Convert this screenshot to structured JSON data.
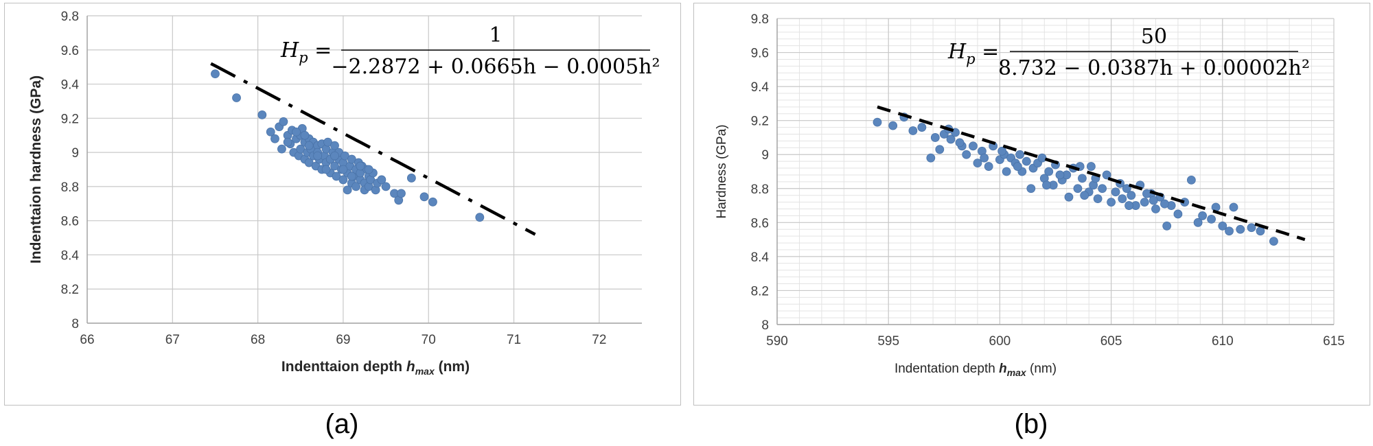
{
  "captions": {
    "a": "(a)",
    "b": "(b)"
  },
  "chart_data": [
    {
      "type": "scatter",
      "panel": "(a)",
      "xlabel": "Indenttaion depth",
      "xlabel_sym": "h",
      "xlabel_sub": "max",
      "xlabel_unit": "(nm)",
      "ylabel": "Indenttaion hardness (GPa)",
      "xlim": [
        66,
        72.5
      ],
      "ylim": [
        8,
        9.8
      ],
      "xticks": [
        66,
        67,
        68,
        69,
        70,
        71,
        72
      ],
      "yticks": [
        8,
        8.2,
        8.4,
        8.6,
        8.8,
        9,
        9.2,
        9.4,
        9.6,
        9.8
      ],
      "ytick_labels": [
        "8",
        "8.2",
        "8.4",
        "8.6",
        "8.8",
        "9",
        "9.2",
        "9.4",
        "9.6",
        "9.8"
      ],
      "grid": "major-vertical-and-horizontal",
      "equation": {
        "lhs": "H",
        "lhs_sub": "p",
        "numerator": "1",
        "denominator": "−2.2872 + 0.0665h − 0.0005h²"
      },
      "fit": {
        "coeffs": [
          -2.2872,
          0.0665,
          -0.0005
        ],
        "numerator": 1,
        "x_range": [
          67.45,
          71.25
        ],
        "y_range": [
          9.52,
          8.52
        ],
        "style": "dash-dot"
      },
      "points": [
        [
          67.5,
          9.46
        ],
        [
          67.75,
          9.32
        ],
        [
          68.05,
          9.22
        ],
        [
          68.15,
          9.12
        ],
        [
          68.2,
          9.08
        ],
        [
          68.25,
          9.15
        ],
        [
          68.28,
          9.02
        ],
        [
          68.3,
          9.18
        ],
        [
          68.35,
          9.1
        ],
        [
          68.38,
          9.05
        ],
        [
          68.4,
          9.13
        ],
        [
          68.42,
          9.0
        ],
        [
          68.45,
          9.08
        ],
        [
          68.48,
          8.98
        ],
        [
          68.5,
          9.1
        ],
        [
          68.5,
          9.02
        ],
        [
          68.52,
          9.14
        ],
        [
          68.55,
          8.96
        ],
        [
          68.55,
          9.06
        ],
        [
          68.58,
          9.0
        ],
        [
          68.6,
          9.08
        ],
        [
          68.6,
          8.94
        ],
        [
          68.62,
          9.02
        ],
        [
          68.65,
          8.98
        ],
        [
          68.65,
          9.06
        ],
        [
          68.68,
          8.92
        ],
        [
          68.7,
          9.04
        ],
        [
          68.7,
          9.0
        ],
        [
          68.72,
          8.96
        ],
        [
          68.75,
          9.05
        ],
        [
          68.75,
          8.9
        ],
        [
          68.78,
          8.98
        ],
        [
          68.8,
          9.02
        ],
        [
          68.8,
          8.94
        ],
        [
          68.82,
          9.06
        ],
        [
          68.85,
          8.88
        ],
        [
          68.85,
          8.96
        ],
        [
          68.88,
          9.0
        ],
        [
          68.9,
          8.92
        ],
        [
          68.9,
          9.04
        ],
        [
          68.92,
          8.86
        ],
        [
          68.95,
          8.96
        ],
        [
          68.95,
          9.0
        ],
        [
          68.98,
          8.9
        ],
        [
          69.0,
          8.94
        ],
        [
          69.0,
          8.84
        ],
        [
          69.02,
          8.98
        ],
        [
          69.05,
          8.88
        ],
        [
          69.05,
          8.78
        ],
        [
          69.08,
          8.92
        ],
        [
          69.1,
          8.82
        ],
        [
          69.1,
          8.96
        ],
        [
          69.12,
          8.86
        ],
        [
          69.15,
          8.9
        ],
        [
          69.15,
          8.8
        ],
        [
          69.18,
          8.94
        ],
        [
          69.2,
          8.84
        ],
        [
          69.2,
          8.88
        ],
        [
          69.22,
          8.92
        ],
        [
          69.25,
          8.82
        ],
        [
          69.25,
          8.78
        ],
        [
          69.28,
          8.9
        ],
        [
          69.3,
          8.86
        ],
        [
          69.3,
          8.8
        ],
        [
          69.32,
          8.84
        ],
        [
          69.35,
          8.88
        ],
        [
          69.38,
          8.78
        ],
        [
          69.4,
          8.82
        ],
        [
          69.45,
          8.84
        ],
        [
          69.5,
          8.8
        ],
        [
          69.6,
          8.76
        ],
        [
          69.65,
          8.72
        ],
        [
          69.68,
          8.76
        ],
        [
          69.8,
          8.85
        ],
        [
          69.95,
          8.74
        ],
        [
          70.05,
          8.71
        ],
        [
          70.6,
          8.62
        ],
        [
          68.35,
          9.06
        ],
        [
          68.45,
          9.12
        ],
        [
          68.55,
          9.1
        ],
        [
          68.6,
          9.04
        ],
        [
          68.7,
          8.98
        ],
        [
          68.8,
          8.9
        ],
        [
          68.9,
          8.98
        ],
        [
          69.0,
          8.9
        ],
        [
          69.1,
          8.86
        ],
        [
          69.2,
          8.92
        ],
        [
          69.3,
          8.9
        ]
      ]
    },
    {
      "type": "scatter",
      "panel": "(b)",
      "xlabel": "Indentation depth",
      "xlabel_sym": "h",
      "xlabel_sub": "max",
      "xlabel_unit": "(nm)",
      "ylabel": "Hardness (GPa)",
      "xlim": [
        590,
        615
      ],
      "ylim": [
        8,
        9.8
      ],
      "xticks": [
        590,
        595,
        600,
        605,
        610,
        615
      ],
      "yticks": [
        8,
        8.2,
        8.4,
        8.6,
        8.8,
        9,
        9.2,
        9.4,
        9.6,
        9.8
      ],
      "ytick_labels": [
        "8",
        "8.2",
        "8.4",
        "8.6",
        "8.8",
        "9",
        "9.2",
        "9.4",
        "9.6",
        "9.8"
      ],
      "grid": "major-and-minor",
      "equation": {
        "lhs": "H",
        "lhs_sub": "p",
        "numerator": "50",
        "denominator": "8.732 − 0.0387h + 0.00002h²"
      },
      "fit": {
        "coeffs": [
          8.732,
          -0.0387,
          2e-05
        ],
        "numerator": 50,
        "x_range": [
          594.5,
          613.7
        ],
        "y_range": [
          9.28,
          8.5
        ],
        "style": "dashed"
      },
      "points": [
        [
          594.5,
          9.19
        ],
        [
          595.2,
          9.17
        ],
        [
          595.7,
          9.22
        ],
        [
          596.1,
          9.14
        ],
        [
          596.5,
          9.16
        ],
        [
          596.9,
          8.98
        ],
        [
          597.1,
          9.1
        ],
        [
          597.3,
          9.03
        ],
        [
          597.5,
          9.12
        ],
        [
          597.8,
          9.09
        ],
        [
          598.0,
          9.13
        ],
        [
          598.3,
          9.05
        ],
        [
          598.5,
          9.0
        ],
        [
          598.8,
          9.05
        ],
        [
          599.0,
          8.95
        ],
        [
          599.2,
          9.02
        ],
        [
          599.5,
          8.93
        ],
        [
          599.7,
          9.05
        ],
        [
          600.0,
          8.97
        ],
        [
          600.2,
          9.0
        ],
        [
          600.3,
          8.9
        ],
        [
          600.5,
          8.98
        ],
        [
          600.7,
          8.95
        ],
        [
          600.9,
          9.0
        ],
        [
          601.0,
          8.9
        ],
        [
          601.2,
          8.96
        ],
        [
          601.4,
          8.8
        ],
        [
          601.5,
          8.92
        ],
        [
          601.7,
          8.95
        ],
        [
          602.0,
          8.86
        ],
        [
          602.2,
          8.9
        ],
        [
          602.4,
          8.82
        ],
        [
          602.5,
          8.94
        ],
        [
          602.8,
          8.85
        ],
        [
          603.0,
          8.88
        ],
        [
          603.1,
          8.75
        ],
        [
          603.3,
          8.92
        ],
        [
          603.5,
          8.8
        ],
        [
          603.7,
          8.86
        ],
        [
          604.0,
          8.78
        ],
        [
          604.2,
          8.82
        ],
        [
          604.4,
          8.74
        ],
        [
          604.6,
          8.8
        ],
        [
          604.8,
          8.88
        ],
        [
          605.0,
          8.72
        ],
        [
          605.2,
          8.78
        ],
        [
          605.5,
          8.74
        ],
        [
          605.7,
          8.8
        ],
        [
          605.9,
          8.76
        ],
        [
          606.1,
          8.7
        ],
        [
          606.3,
          8.82
        ],
        [
          606.5,
          8.72
        ],
        [
          606.8,
          8.77
        ],
        [
          607.0,
          8.68
        ],
        [
          607.2,
          8.75
        ],
        [
          607.5,
          8.58
        ],
        [
          607.7,
          8.7
        ],
        [
          608.0,
          8.65
        ],
        [
          608.3,
          8.72
        ],
        [
          608.6,
          8.85
        ],
        [
          608.9,
          8.6
        ],
        [
          609.1,
          8.64
        ],
        [
          609.5,
          8.62
        ],
        [
          609.7,
          8.69
        ],
        [
          610.0,
          8.58
        ],
        [
          610.3,
          8.55
        ],
        [
          610.5,
          8.69
        ],
        [
          610.8,
          8.56
        ],
        [
          611.3,
          8.57
        ],
        [
          611.7,
          8.55
        ],
        [
          612.3,
          8.49
        ],
        [
          598.2,
          9.07
        ],
        [
          599.3,
          8.98
        ],
        [
          600.8,
          8.93
        ],
        [
          601.9,
          8.98
        ],
        [
          602.7,
          8.88
        ],
        [
          603.6,
          8.93
        ],
        [
          604.3,
          8.86
        ],
        [
          605.4,
          8.83
        ],
        [
          606.6,
          8.77
        ],
        [
          607.4,
          8.71
        ],
        [
          604.1,
          8.93
        ],
        [
          600.1,
          9.02
        ],
        [
          597.7,
          9.15
        ],
        [
          602.1,
          8.82
        ],
        [
          603.8,
          8.76
        ],
        [
          605.8,
          8.7
        ],
        [
          606.9,
          8.73
        ]
      ]
    }
  ]
}
